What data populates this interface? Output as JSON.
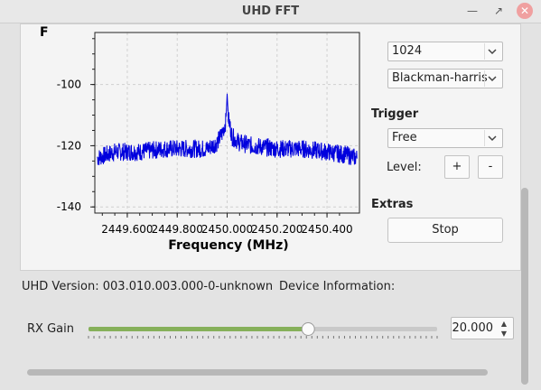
{
  "window": {
    "title": "UHD FFT"
  },
  "plot": {
    "ylabel_fragment": "F",
    "xlabel": "Frequency (MHz)",
    "y_ticks": [
      "-100",
      "-120",
      "-140"
    ],
    "x_ticks": [
      "2449.600",
      "2449.800",
      "2450.000",
      "2450.200",
      "2450.400"
    ],
    "trace_color": "#0000dd"
  },
  "controls": {
    "fft_size": "1024",
    "window_type": "Blackman-harris",
    "trigger_title": "Trigger",
    "trigger_mode": "Free",
    "level_label": "Level:",
    "level_plus": "+",
    "level_minus": "-",
    "extras_title": "Extras",
    "stop_label": "Stop"
  },
  "info": {
    "uhd_version": "UHD Version: 003.010.003.000-0-unknown",
    "device_info": "Device Information:"
  },
  "gain": {
    "label": "RX Gain",
    "value": "20.000",
    "level_fraction": 0.63,
    "accent": "#86b05a"
  },
  "chart_data": {
    "type": "line",
    "xlabel": "Frequency (MHz)",
    "ylabel": "",
    "xlim": [
      2449.47,
      2450.53
    ],
    "ylim": [
      -142,
      -83
    ],
    "x_ticks": [
      2449.6,
      2449.8,
      2450.0,
      2450.2,
      2450.4
    ],
    "y_ticks": [
      -100,
      -120,
      -140
    ],
    "grid": true,
    "series": [
      {
        "x": [
          2449.48,
          2449.55,
          2449.65,
          2449.75,
          2449.85,
          2449.92,
          2449.96,
          2449.98,
          2449.995,
          2450.0,
          2450.005,
          2450.02,
          2450.05,
          2450.1,
          2450.2,
          2450.3,
          2450.4,
          2450.48,
          2450.52
        ],
        "values": [
          -124,
          -122,
          -122,
          -121,
          -121,
          -121,
          -119,
          -116,
          -112,
          -103,
          -111,
          -117,
          -119,
          -120,
          -121,
          -121,
          -122,
          -123,
          -124
        ]
      }
    ]
  }
}
